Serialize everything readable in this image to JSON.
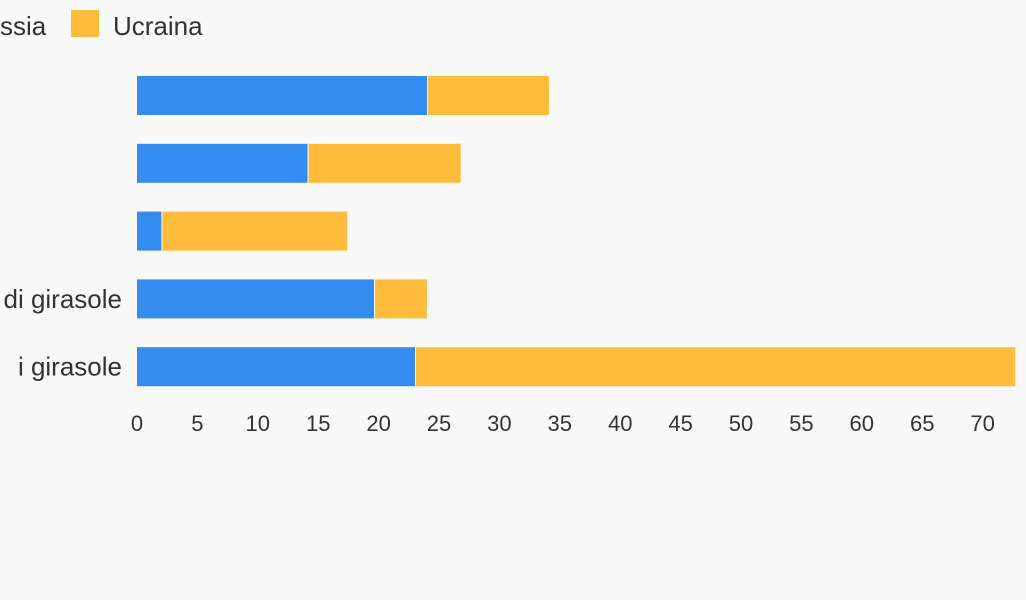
{
  "chart_data": {
    "type": "bar",
    "orientation": "horizontal",
    "stacked": true,
    "categories": [
      "",
      "",
      "",
      "di girasole",
      "i girasole"
    ],
    "series": [
      {
        "name": "ssia",
        "color": "#348cf0",
        "values": [
          24.1,
          14.2,
          2.1,
          19.7,
          23.1
        ]
      },
      {
        "name": "Ucraina",
        "color": "#ffbb3c",
        "values": [
          10.0,
          12.6,
          15.3,
          4.3,
          49.6
        ]
      }
    ],
    "x_ticks": [
      "0",
      "5",
      "10",
      "15",
      "20",
      "25",
      "30",
      "35",
      "40",
      "45",
      "50",
      "55",
      "60",
      "65",
      "70"
    ],
    "xlim": [
      0,
      72.6
    ],
    "grid": false,
    "legend_position": "top-left"
  }
}
